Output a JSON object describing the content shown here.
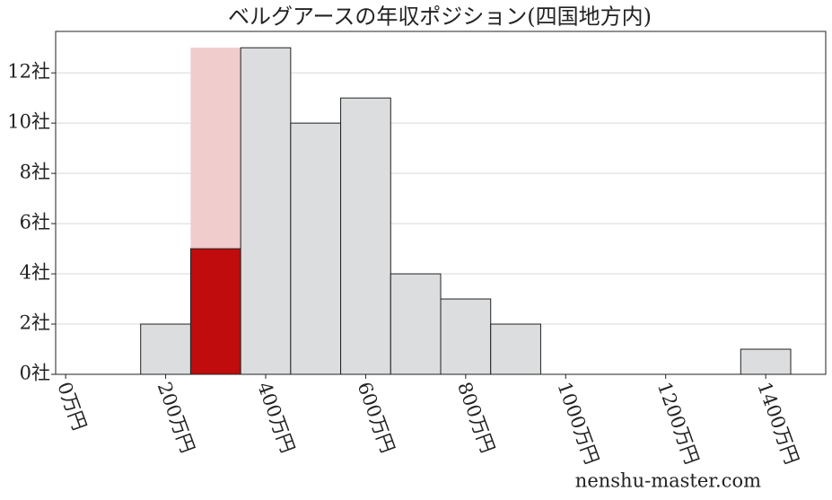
{
  "chart_data": {
    "type": "histogram",
    "title": "ベルグアースの年収ポジション(四国地方内)",
    "bins": [
      150,
      250,
      350,
      450,
      550,
      650,
      750,
      850,
      950,
      1050,
      1150,
      1250,
      1350,
      1450
    ],
    "counts": [
      2,
      5,
      13,
      10,
      11,
      4,
      3,
      2,
      0,
      0,
      0,
      0,
      1
    ],
    "colors": [
      "#dcdddf",
      "#c00c0c",
      "#dcdddf",
      "#dcdddf",
      "#dcdddf",
      "#dcdddf",
      "#dcdddf",
      "#dcdddf",
      "#dcdddf",
      "#dcdddf",
      "#dcdddf",
      "#dcdddf",
      "#dcdddf"
    ],
    "highlight": {
      "bins": [
        250,
        350
      ],
      "value": 13,
      "color": "#f0cccc"
    },
    "xlim": [
      -20,
      1520
    ],
    "ylim": [
      0,
      13.65
    ],
    "xticks": [
      {
        "value": 0,
        "label": "0万円"
      },
      {
        "value": 200,
        "label": "200万円"
      },
      {
        "value": 400,
        "label": "400万円"
      },
      {
        "value": 600,
        "label": "600万円"
      },
      {
        "value": 800,
        "label": "800万円"
      },
      {
        "value": 1000,
        "label": "1000万円"
      },
      {
        "value": 1200,
        "label": "1200万円"
      },
      {
        "value": 1400,
        "label": "1400万円"
      }
    ],
    "yticks": [
      {
        "value": 0,
        "label": "0社"
      },
      {
        "value": 2,
        "label": "2社"
      },
      {
        "value": 4,
        "label": "4社"
      },
      {
        "value": 6,
        "label": "6社"
      },
      {
        "value": 8,
        "label": "8社"
      },
      {
        "value": 10,
        "label": "10社"
      },
      {
        "value": 12,
        "label": "12社"
      }
    ],
    "grid": true,
    "watermark": "nenshu-master.com"
  }
}
